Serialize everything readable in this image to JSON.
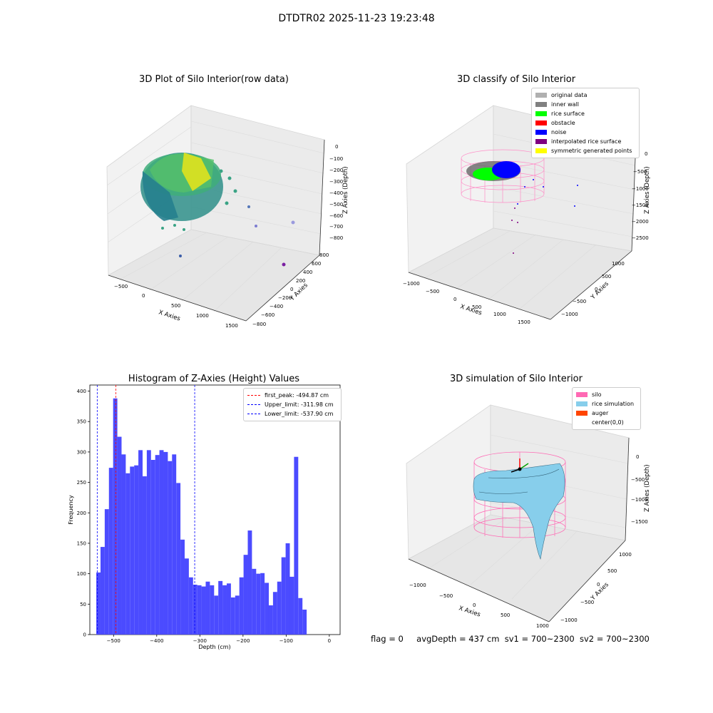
{
  "figure": {
    "suptitle": "DTDTR02 2025-11-23 19:23:48",
    "status": {
      "flag": "flag = 0",
      "avgDepth": "avgDepth = 437 cm",
      "sv1": "sv1 = 700~2300",
      "sv2": "sv2 = 700~2300"
    }
  },
  "colors": {
    "hist_bar": "#4b4bff",
    "peak_line": "#ff0000",
    "limit_line": "#0000ff",
    "silo": "#ff69b4",
    "rice_sim": "#87ceeb",
    "auger": "#ff4500",
    "original": "#b0b0b0",
    "inner_wall": "#808080",
    "rice_surface": "#00ff00",
    "obstacle": "#ff0000",
    "noise": "#0000ff",
    "interp": "#800080",
    "symmetric": "#ffff00"
  },
  "plot1": {
    "title": "3D Plot of Silo Interior(row data)",
    "xlabel": "X Axies",
    "ylabel": "Y Axies",
    "zlabel": "Z Axies (Depth)",
    "xticks": [
      "−500",
      "0",
      "500",
      "1000",
      "1500"
    ],
    "yticks": [
      "−800",
      "−600",
      "−400",
      "−200",
      "0",
      "200",
      "400",
      "600",
      "800"
    ],
    "zticks": [
      "0",
      "−100",
      "−200",
      "−300",
      "−400",
      "−500",
      "−600",
      "−700",
      "−800"
    ]
  },
  "plot2": {
    "title": "3D classify of Silo Interior",
    "xlabel": "X Axies",
    "ylabel": "Y Axies",
    "zlabel": "Z Axies (Depth)",
    "xticks": [
      "−1000",
      "−500",
      "0",
      "500",
      "1000",
      "1500"
    ],
    "yticks": [
      "−1000",
      "−500",
      "0",
      "500",
      "1000"
    ],
    "zticks": [
      "0",
      "−500",
      "−1000",
      "−1500",
      "−2000",
      "−2500"
    ],
    "legend": [
      {
        "label": "original data",
        "color": "#b0b0b0"
      },
      {
        "label": "inner wall",
        "color": "#808080"
      },
      {
        "label": "rice surface",
        "color": "#00ff00"
      },
      {
        "label": "obstacle",
        "color": "#ff0000"
      },
      {
        "label": "noise",
        "color": "#0000ff"
      },
      {
        "label": "interpolated rice surface",
        "color": "#800080"
      },
      {
        "label": "symmetric generated points",
        "color": "#ffff00"
      }
    ]
  },
  "plot4": {
    "title": "3D simulation of Silo Interior",
    "xlabel": "X Axies",
    "ylabel": "Y Axies",
    "zlabel": "Z Axies (Depth)",
    "xticks": [
      "−1000",
      "−500",
      "0",
      "500",
      "1000"
    ],
    "yticks": [
      "−1000",
      "−500",
      "0",
      "500",
      "1000"
    ],
    "zticks": [
      "0",
      "−500",
      "−1000",
      "−1500"
    ],
    "legend": [
      {
        "label": "silo",
        "color": "#ff69b4"
      },
      {
        "label": "rice simulation",
        "color": "#87ceeb"
      },
      {
        "label": "auger",
        "color": "#ff4500"
      },
      {
        "label": "center(0,0)",
        "color": ""
      }
    ]
  },
  "chart_data": {
    "type": "bar",
    "title": "Histogram of Z-Axies (Height) Values",
    "xlabel": "Depth (cm)",
    "ylabel": "Frequency",
    "xlim": [
      -555,
      25
    ],
    "ylim": [
      0,
      410
    ],
    "xticks": [
      -500,
      -400,
      -300,
      -200,
      -100,
      0
    ],
    "yticks": [
      0,
      50,
      100,
      150,
      200,
      250,
      300,
      350,
      400
    ],
    "bin_start": -540,
    "bin_width": 9.75,
    "values": [
      102,
      144,
      206,
      274,
      388,
      325,
      296,
      265,
      276,
      278,
      303,
      260,
      303,
      287,
      295,
      303,
      300,
      285,
      296,
      249,
      156,
      125,
      94,
      82,
      81,
      79,
      87,
      81,
      64,
      88,
      81,
      84,
      61,
      64,
      94,
      131,
      171,
      108,
      100,
      101,
      85,
      48,
      70,
      87,
      127,
      150,
      95,
      292,
      60,
      41
    ],
    "lines": [
      {
        "label": "first_peak: -494.87 cm",
        "x": -494.87,
        "color": "#ff0000"
      },
      {
        "label": "Upper_limit: -311.98 cm",
        "x": -311.98,
        "color": "#0000ff"
      },
      {
        "label": "Lower_limit: -537.90 cm",
        "x": -537.9,
        "color": "#0000ff"
      }
    ],
    "legend_position": "upper right",
    "grid": false
  }
}
